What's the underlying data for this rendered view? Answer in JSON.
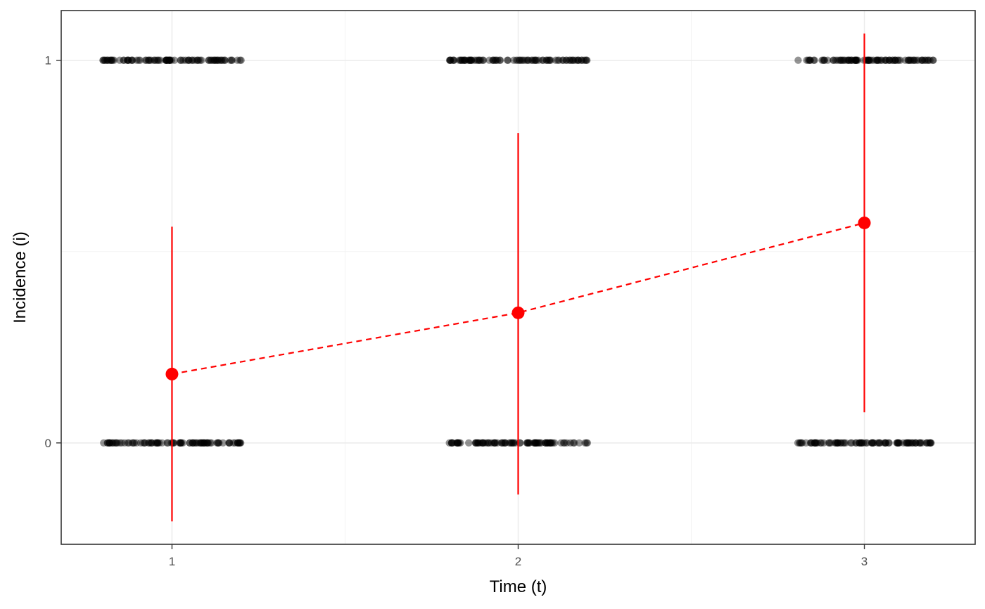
{
  "chart_data": {
    "type": "scatter",
    "title": "",
    "xlabel": "Time (t)",
    "ylabel": "Incidence (i)",
    "x_ticks": [
      "1",
      "2",
      "3"
    ],
    "y_ticks": [
      "0",
      "1"
    ],
    "xlim": [
      0.68,
      3.32
    ],
    "ylim": [
      -0.265,
      1.13
    ],
    "grid": true,
    "legend": "none",
    "colors": {
      "points": "#000000",
      "estimate": "#ff0000",
      "grid_major": "#ebebeb",
      "grid_minor": "#f3f3f3",
      "panel_border": "#333333"
    },
    "observations": {
      "description_values": [
        0,
        1
      ],
      "groups": [
        {
          "x": 1,
          "jitter": [
            -0.2,
            0.2
          ],
          "y_values": [
            0,
            1
          ]
        },
        {
          "x": 2,
          "jitter": [
            -0.2,
            0.2
          ],
          "y_values": [
            0,
            1
          ]
        },
        {
          "x": 3,
          "jitter": [
            -0.2,
            0.2
          ],
          "y_values": [
            0,
            1
          ]
        }
      ]
    },
    "series": [
      {
        "x": [
          1,
          2,
          3
        ],
        "y": [
          0.18,
          0.34,
          0.575
        ],
        "lower": [
          -0.205,
          -0.135,
          0.08
        ],
        "upper": [
          0.565,
          0.81,
          1.07
        ]
      }
    ]
  }
}
